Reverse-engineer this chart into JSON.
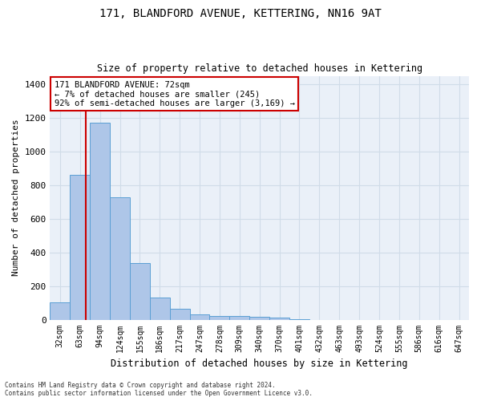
{
  "title": "171, BLANDFORD AVENUE, KETTERING, NN16 9AT",
  "subtitle": "Size of property relative to detached houses in Kettering",
  "xlabel": "Distribution of detached houses by size in Kettering",
  "ylabel": "Number of detached properties",
  "categories": [
    "32sqm",
    "63sqm",
    "94sqm",
    "124sqm",
    "155sqm",
    "186sqm",
    "217sqm",
    "247sqm",
    "278sqm",
    "309sqm",
    "340sqm",
    "370sqm",
    "401sqm",
    "432sqm",
    "463sqm",
    "493sqm",
    "524sqm",
    "555sqm",
    "586sqm",
    "616sqm",
    "647sqm"
  ],
  "values": [
    105,
    860,
    1170,
    730,
    335,
    130,
    65,
    30,
    22,
    20,
    15,
    10,
    5,
    0,
    0,
    0,
    0,
    0,
    0,
    0,
    0
  ],
  "bar_color": "#aec6e8",
  "bar_edge_color": "#5a9fd4",
  "vline_x": 1.29,
  "vline_color": "#cc0000",
  "annotation_line1": "171 BLANDFORD AVENUE: 72sqm",
  "annotation_line2": "← 7% of detached houses are smaller (245)",
  "annotation_line3": "92% of semi-detached houses are larger (3,169) →",
  "annotation_box_color": "#ffffff",
  "annotation_box_edge_color": "#cc0000",
  "grid_color": "#d0dce8",
  "background_color": "#eaf0f8",
  "ylim": [
    0,
    1450
  ],
  "yticks": [
    0,
    200,
    400,
    600,
    800,
    1000,
    1200,
    1400
  ],
  "footer1": "Contains HM Land Registry data © Crown copyright and database right 2024.",
  "footer2": "Contains public sector information licensed under the Open Government Licence v3.0."
}
